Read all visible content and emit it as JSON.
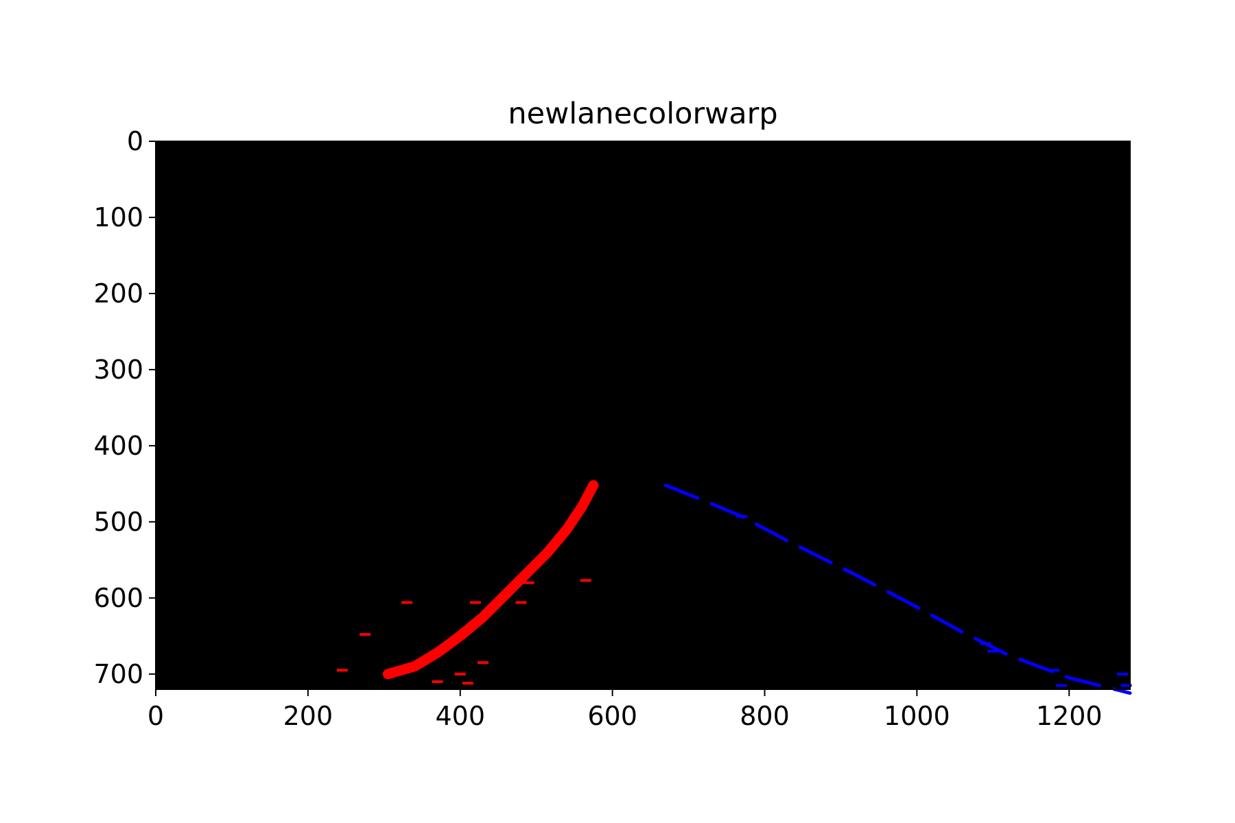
{
  "chart_data": {
    "type": "image",
    "title": "newlanecolorwarp",
    "xlabel": "",
    "ylabel": "",
    "xlim": [
      0,
      1280
    ],
    "ylim": [
      720,
      0
    ],
    "grid": false,
    "legend": "none",
    "background_color": "#000000",
    "x_ticks": [
      "0",
      "200",
      "400",
      "600",
      "800",
      "1000",
      "1200"
    ],
    "y_ticks": [
      "0",
      "100",
      "200",
      "300",
      "400",
      "500",
      "600",
      "700"
    ],
    "series": [
      {
        "color": "#ff0000",
        "points": [
          [
            575,
            452
          ],
          [
            560,
            480
          ],
          [
            540,
            510
          ],
          [
            515,
            540
          ],
          [
            490,
            565
          ],
          [
            460,
            595
          ],
          [
            430,
            625
          ],
          [
            400,
            650
          ],
          [
            370,
            672
          ],
          [
            340,
            690
          ],
          [
            305,
            700
          ]
        ]
      },
      {
        "color": "#0000ff",
        "points": [
          [
            670,
            452
          ],
          [
            720,
            472
          ],
          [
            770,
            493
          ],
          [
            830,
            525
          ],
          [
            880,
            550
          ],
          [
            920,
            570
          ],
          [
            1000,
            612
          ],
          [
            1060,
            645
          ],
          [
            1120,
            675
          ],
          [
            1200,
            705
          ],
          [
            1280,
            725
          ]
        ]
      }
    ],
    "scatter_marks": [
      {
        "color": "#ff0000",
        "points": [
          [
            565,
            577
          ],
          [
            490,
            580
          ],
          [
            330,
            606
          ],
          [
            420,
            606
          ],
          [
            480,
            606
          ],
          [
            275,
            648
          ],
          [
            245,
            695
          ],
          [
            430,
            685
          ],
          [
            370,
            710
          ],
          [
            400,
            700
          ],
          [
            410,
            712
          ]
        ]
      },
      {
        "color": "#0000ff",
        "points": [
          [
            770,
            493
          ],
          [
            1090,
            660
          ],
          [
            1100,
            670
          ],
          [
            1180,
            695
          ],
          [
            1190,
            715
          ],
          [
            1270,
            700
          ],
          [
            1275,
            715
          ]
        ]
      }
    ]
  }
}
